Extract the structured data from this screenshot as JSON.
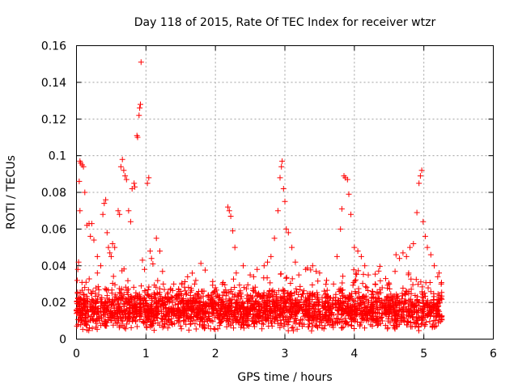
{
  "chart_data": {
    "type": "scatter",
    "title": "Day 118 of 2015, Rate Of TEC Index for receiver wtzr",
    "xlabel": "GPS time / hours",
    "ylabel": "ROTI / TECUs",
    "xlim": [
      0,
      6
    ],
    "ylim": [
      0,
      0.16
    ],
    "xticks": [
      0,
      1,
      2,
      3,
      4,
      5,
      6
    ],
    "xtick_labels": [
      "0",
      "1",
      "2",
      "3",
      "4",
      "5",
      "6"
    ],
    "yticks": [
      0,
      0.02,
      0.04,
      0.06,
      0.08,
      0.1,
      0.12,
      0.14,
      0.16
    ],
    "ytick_labels": [
      "0",
      "0.02",
      "0.04",
      "0.06",
      "0.08",
      "0.1",
      "0.12",
      "0.14",
      "0.16"
    ],
    "grid": true,
    "marker": "+",
    "color": "#ff0000",
    "series": [
      {
        "name": "ROTI",
        "points": [
          [
            0.0,
            0.014
          ],
          [
            0.01,
            0.032
          ],
          [
            0.02,
            0.038
          ],
          [
            0.03,
            0.042
          ],
          [
            0.04,
            0.086
          ],
          [
            0.05,
            0.097
          ],
          [
            0.06,
            0.096
          ],
          [
            0.08,
            0.095
          ],
          [
            0.1,
            0.094
          ],
          [
            0.05,
            0.07
          ],
          [
            0.12,
            0.08
          ],
          [
            0.15,
            0.062
          ],
          [
            0.18,
            0.063
          ],
          [
            0.2,
            0.056
          ],
          [
            0.22,
            0.063
          ],
          [
            0.25,
            0.054
          ],
          [
            0.3,
            0.045
          ],
          [
            0.35,
            0.04
          ],
          [
            0.38,
            0.068
          ],
          [
            0.4,
            0.074
          ],
          [
            0.42,
            0.076
          ],
          [
            0.44,
            0.058
          ],
          [
            0.46,
            0.05
          ],
          [
            0.48,
            0.047
          ],
          [
            0.52,
            0.052
          ],
          [
            0.55,
            0.05
          ],
          [
            0.6,
            0.07
          ],
          [
            0.62,
            0.068
          ],
          [
            0.64,
            0.094
          ],
          [
            0.66,
            0.098
          ],
          [
            0.68,
            0.092
          ],
          [
            0.7,
            0.089
          ],
          [
            0.72,
            0.087
          ],
          [
            0.75,
            0.07
          ],
          [
            0.78,
            0.064
          ],
          [
            0.8,
            0.082
          ],
          [
            0.83,
            0.085
          ],
          [
            0.84,
            0.083
          ],
          [
            0.87,
            0.111
          ],
          [
            0.88,
            0.11
          ],
          [
            0.9,
            0.122
          ],
          [
            0.91,
            0.126
          ],
          [
            0.92,
            0.128
          ],
          [
            0.93,
            0.151
          ],
          [
            0.95,
            0.043
          ],
          [
            0.98,
            0.038
          ],
          [
            1.02,
            0.085
          ],
          [
            1.04,
            0.088
          ],
          [
            1.06,
            0.048
          ],
          [
            1.08,
            0.044
          ],
          [
            1.15,
            0.055
          ],
          [
            1.2,
            0.048
          ],
          [
            1.25,
            0.03
          ],
          [
            1.3,
            0.022
          ],
          [
            1.4,
            0.03
          ],
          [
            1.5,
            0.026
          ],
          [
            1.6,
            0.034
          ],
          [
            1.7,
            0.03
          ],
          [
            1.8,
            0.026
          ],
          [
            1.9,
            0.024
          ],
          [
            2.0,
            0.028
          ],
          [
            2.1,
            0.03
          ],
          [
            2.18,
            0.072
          ],
          [
            2.2,
            0.07
          ],
          [
            2.22,
            0.067
          ],
          [
            2.25,
            0.059
          ],
          [
            2.28,
            0.05
          ],
          [
            2.3,
            0.036
          ],
          [
            2.4,
            0.04
          ],
          [
            2.5,
            0.035
          ],
          [
            2.6,
            0.038
          ],
          [
            2.7,
            0.04
          ],
          [
            2.8,
            0.045
          ],
          [
            2.85,
            0.055
          ],
          [
            2.9,
            0.07
          ],
          [
            2.93,
            0.088
          ],
          [
            2.95,
            0.094
          ],
          [
            2.96,
            0.097
          ],
          [
            2.98,
            0.082
          ],
          [
            3.0,
            0.075
          ],
          [
            3.02,
            0.06
          ],
          [
            3.05,
            0.058
          ],
          [
            3.1,
            0.05
          ],
          [
            3.15,
            0.042
          ],
          [
            3.2,
            0.035
          ],
          [
            3.3,
            0.038
          ],
          [
            3.4,
            0.04
          ],
          [
            3.5,
            0.036
          ],
          [
            3.6,
            0.032
          ],
          [
            3.7,
            0.03
          ],
          [
            3.75,
            0.045
          ],
          [
            3.8,
            0.06
          ],
          [
            3.82,
            0.071
          ],
          [
            3.85,
            0.089
          ],
          [
            3.87,
            0.088
          ],
          [
            3.9,
            0.087
          ],
          [
            3.92,
            0.079
          ],
          [
            3.95,
            0.068
          ],
          [
            4.0,
            0.05
          ],
          [
            4.05,
            0.048
          ],
          [
            4.1,
            0.045
          ],
          [
            4.15,
            0.04
          ],
          [
            4.2,
            0.035
          ],
          [
            4.3,
            0.03
          ],
          [
            4.4,
            0.028
          ],
          [
            4.5,
            0.03
          ],
          [
            4.6,
            0.046
          ],
          [
            4.7,
            0.047
          ],
          [
            4.75,
            0.045
          ],
          [
            4.8,
            0.05
          ],
          [
            4.85,
            0.052
          ],
          [
            4.9,
            0.069
          ],
          [
            4.93,
            0.085
          ],
          [
            4.95,
            0.089
          ],
          [
            4.97,
            0.092
          ],
          [
            4.99,
            0.064
          ],
          [
            5.02,
            0.056
          ],
          [
            5.05,
            0.05
          ],
          [
            5.1,
            0.046
          ],
          [
            5.15,
            0.04
          ],
          [
            5.2,
            0.034
          ],
          [
            5.25,
            0.03
          ],
          [
            0.5,
            0.045
          ],
          [
            1.1,
            0.041
          ],
          [
            2.55,
            0.034
          ],
          [
            3.45,
            0.037
          ],
          [
            4.65,
            0.044
          ],
          [
            5.22,
            0.036
          ],
          [
            0.3,
            0.036
          ],
          [
            1.35,
            0.027
          ],
          [
            2.75,
            0.042
          ],
          [
            4.45,
            0.033
          ]
        ]
      }
    ],
    "baseline_band": {
      "x_start": 0.0,
      "x_end": 5.26,
      "y_center": 0.016,
      "y_spread": 0.012,
      "count": 2600
    }
  }
}
